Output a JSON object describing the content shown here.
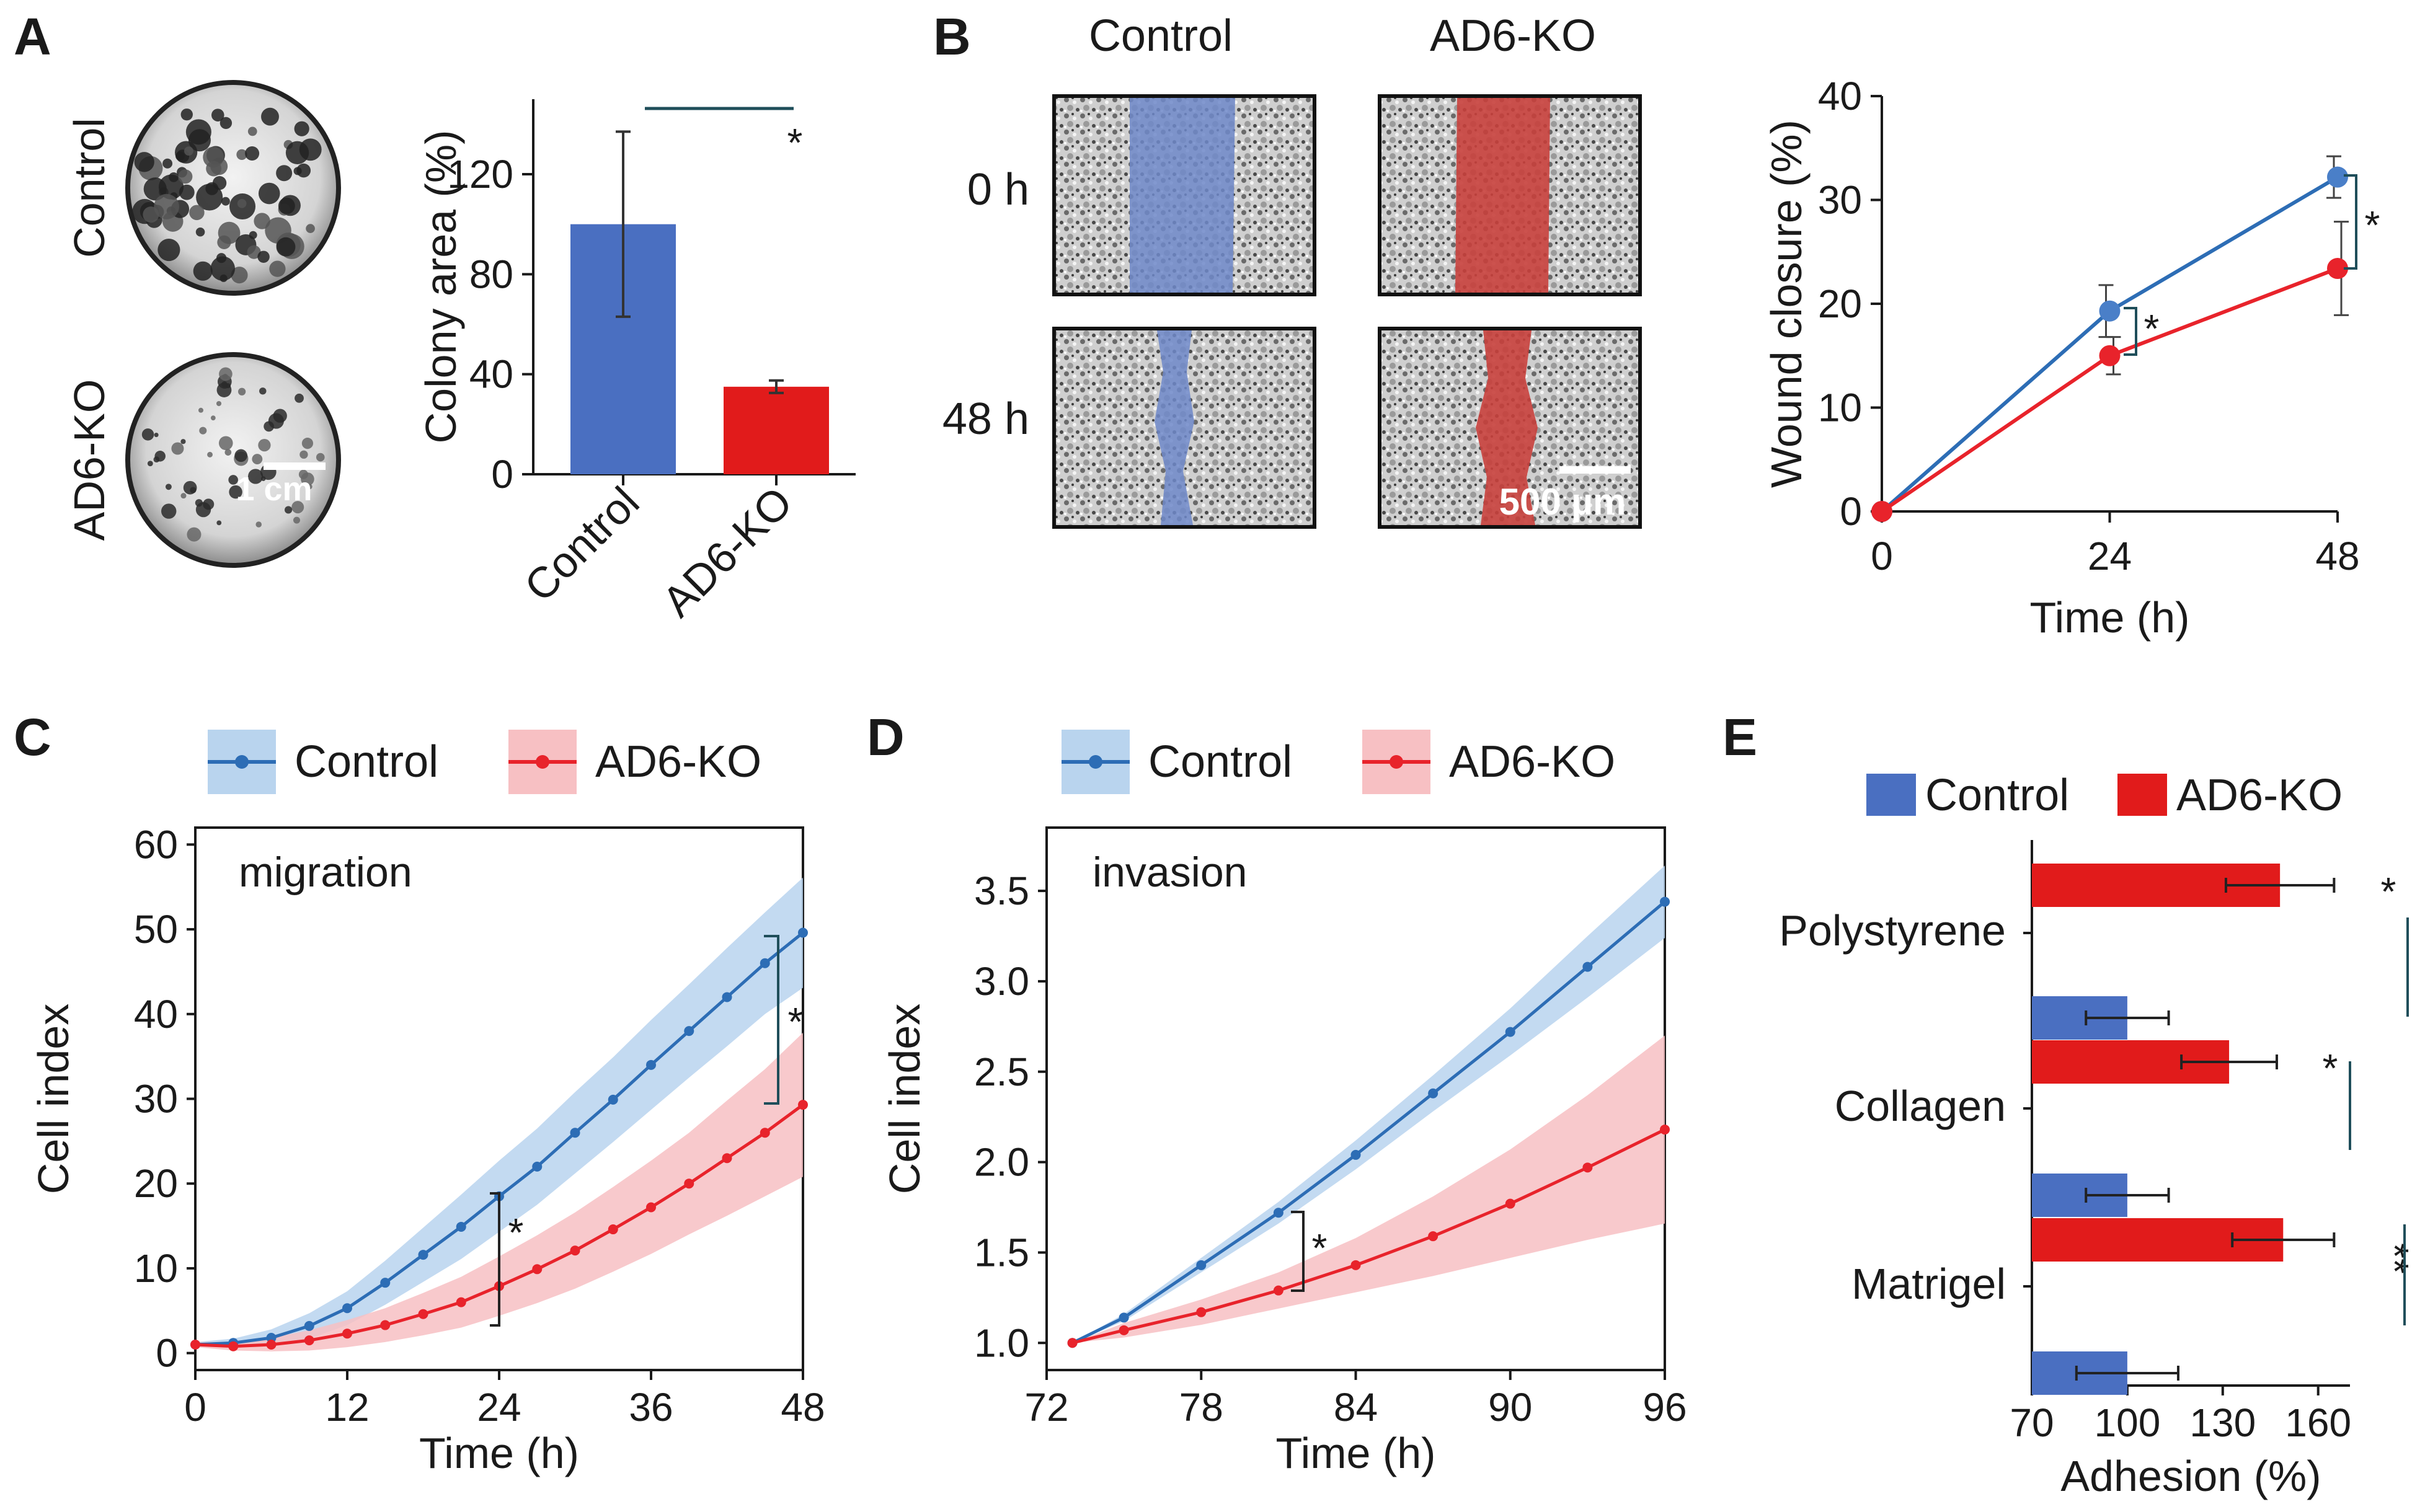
{
  "colors": {
    "control": "#4a6fc1",
    "ko": "#e11b1b",
    "control_line": "#2d6db5",
    "ko_line": "#e8232b",
    "control_band": "#b9d4ee",
    "ko_band": "#f7c0c3",
    "axis": "#1a1a1a",
    "sig_line": "#1f4e5a"
  },
  "panel_labels": {
    "A": "A",
    "B": "B",
    "C": "C",
    "D": "D",
    "E": "E"
  },
  "panel_a": {
    "photo_labels": {
      "top": "Control",
      "bottom": "AD6-KO"
    },
    "scale_bar": "1 cm"
  },
  "panel_b_images": {
    "col_headers": [
      "Control",
      "AD6-KO"
    ],
    "row_labels": [
      "0 h",
      "48 h"
    ],
    "scale_bar": "500 µm"
  },
  "chart_data": [
    {
      "id": "A",
      "type": "bar",
      "categories": [
        "Control",
        "AD6-KO"
      ],
      "values": [
        100,
        35
      ],
      "errors": [
        37,
        2.5
      ],
      "ylabel": "Colony area (%)",
      "ylim": [
        0,
        150
      ],
      "yticks": [
        "0",
        "40",
        "80",
        "120"
      ],
      "significance": "*"
    },
    {
      "id": "B",
      "type": "line",
      "xlabel": "Time (h)",
      "ylabel": "Wound closure (%)",
      "xlim": [
        0,
        48
      ],
      "ylim": [
        0,
        40
      ],
      "xticks": [
        "0",
        "24",
        "48"
      ],
      "yticks": [
        "0",
        "10",
        "20",
        "30",
        "40"
      ],
      "x": [
        0,
        24,
        48
      ],
      "series": [
        {
          "name": "Control",
          "values": [
            0,
            19.3,
            32.2
          ],
          "errors": [
            0,
            2.5,
            2.0
          ]
        },
        {
          "name": "AD6-KO",
          "values": [
            0,
            15.0,
            23.4
          ],
          "errors": [
            0,
            1.8,
            4.5
          ]
        }
      ],
      "significance": [
        "*",
        "*"
      ]
    },
    {
      "id": "C",
      "type": "line",
      "title": "migration",
      "xlabel": "Time (h)",
      "ylabel": "Cell index",
      "xlim": [
        0,
        48
      ],
      "ylim": [
        -2,
        62
      ],
      "xticks": [
        "0",
        "12",
        "24",
        "36",
        "48"
      ],
      "yticks": [
        "0",
        "10",
        "20",
        "30",
        "40",
        "50",
        "60"
      ],
      "legend": [
        "Control",
        "AD6-KO"
      ],
      "x": [
        0,
        3,
        6,
        9,
        12,
        15,
        18,
        21,
        24,
        27,
        30,
        33,
        36,
        39,
        42,
        45,
        48
      ],
      "series": [
        {
          "name": "Control",
          "values": [
            1,
            1.2,
            1.8,
            3.2,
            5.3,
            8.3,
            11.6,
            14.9,
            18.5,
            22.0,
            26.0,
            29.9,
            34.0,
            38.0,
            42.0,
            46.0,
            49.6
          ],
          "band": [
            0.3,
            0.5,
            1.0,
            1.5,
            2.0,
            2.6,
            3.2,
            3.8,
            4.2,
            4.5,
            4.8,
            5.0,
            5.3,
            5.5,
            5.8,
            6.0,
            6.5
          ]
        },
        {
          "name": "AD6-KO",
          "values": [
            1,
            0.8,
            1.0,
            1.5,
            2.3,
            3.3,
            4.6,
            6.0,
            7.9,
            9.9,
            12.1,
            14.6,
            17.2,
            20.0,
            23.0,
            26.0,
            29.3
          ],
          "band": [
            0.3,
            0.5,
            0.8,
            1.2,
            1.6,
            2.0,
            2.5,
            3.0,
            3.5,
            4.0,
            4.5,
            5.0,
            5.5,
            6.0,
            6.8,
            7.5,
            8.5
          ]
        }
      ],
      "significance": [
        "*",
        "*"
      ]
    },
    {
      "id": "D",
      "type": "line",
      "title": "invasion",
      "xlabel": "Time (h)",
      "ylabel": "Cell index",
      "xlim": [
        72,
        96
      ],
      "ylim": [
        0.85,
        3.85
      ],
      "xticks": [
        "72",
        "78",
        "84",
        "90",
        "96"
      ],
      "yticks": [
        "1.0",
        "1.5",
        "2.0",
        "2.5",
        "3.0",
        "3.5"
      ],
      "legend": [
        "Control",
        "AD6-KO"
      ],
      "x": [
        73,
        75,
        78,
        81,
        84,
        87,
        90,
        93,
        96
      ],
      "series": [
        {
          "name": "Control",
          "values": [
            1.0,
            1.14,
            1.43,
            1.72,
            2.04,
            2.38,
            2.72,
            3.08,
            3.44
          ],
          "band": [
            0.0,
            0.02,
            0.04,
            0.06,
            0.08,
            0.1,
            0.13,
            0.17,
            0.2
          ]
        },
        {
          "name": "AD6-KO",
          "values": [
            1.0,
            1.07,
            1.17,
            1.29,
            1.43,
            1.59,
            1.77,
            1.97,
            2.18
          ],
          "band": [
            0.0,
            0.04,
            0.07,
            0.1,
            0.15,
            0.22,
            0.3,
            0.4,
            0.52
          ]
        }
      ],
      "significance": [
        "*"
      ]
    },
    {
      "id": "E",
      "type": "bar",
      "orientation": "horizontal",
      "xlabel": "Adhesion (%)",
      "xlim": [
        70,
        170
      ],
      "xticks": [
        "70",
        "100",
        "130",
        "160"
      ],
      "legend": [
        "Control",
        "AD6-KO"
      ],
      "categories": [
        "Polystyrene",
        "Collagen",
        "Matrigel"
      ],
      "series": [
        {
          "name": "AD6-KO",
          "values": [
            148,
            132,
            149
          ],
          "errors": [
            17,
            15,
            16
          ]
        },
        {
          "name": "Control",
          "values": [
            100,
            100,
            100
          ],
          "errors": [
            13,
            13,
            16
          ]
        }
      ],
      "significance": [
        "*",
        "*",
        "**"
      ]
    }
  ]
}
